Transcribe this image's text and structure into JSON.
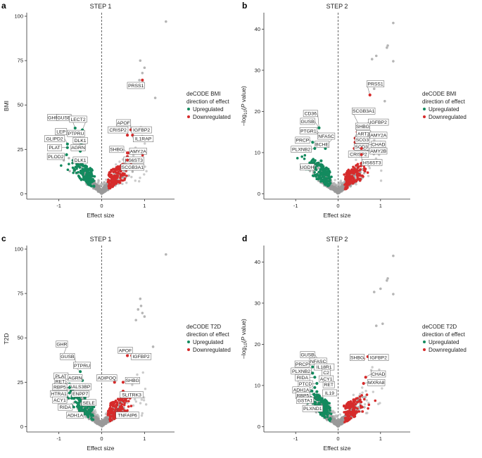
{
  "colors": {
    "up": "#138a5e",
    "down": "#d62b2b",
    "neutral": "#9a9a9a",
    "axis": "#333333"
  },
  "chart_data": [
    {
      "type": "scatter",
      "letter": "a",
      "title": "STEP 1",
      "xlabel": "Effect size",
      "ylabel": "BMI",
      "xlim": [
        -1.75,
        1.7
      ],
      "ylim": [
        -3,
        102
      ],
      "xticks": [
        -1,
        0,
        1
      ],
      "yticks": [
        0,
        25,
        50,
        75,
        100
      ],
      "ylabel_style": "plain",
      "legend": {
        "title": [
          "deCODE BMI",
          "direction of effect"
        ],
        "up": "Upregulated",
        "down": "Downregulated"
      },
      "extra_points": [
        [
          1.5,
          97
        ],
        [
          0.9,
          75
        ],
        [
          1.0,
          71
        ],
        [
          0.95,
          68
        ],
        [
          1.25,
          54
        ],
        [
          0.88,
          64
        ],
        [
          0.75,
          60
        ]
      ],
      "labels": [
        {
          "text": "GHR",
          "x": -1.05,
          "y": 44,
          "lx": -1.13,
          "ly": 43,
          "dir": "up"
        },
        {
          "text": "GUSB",
          "x": -0.62,
          "y": 37,
          "lx": -0.88,
          "ly": 43,
          "dir": "up"
        },
        {
          "text": "LECT2",
          "x": -0.45,
          "y": 36,
          "lx": -0.55,
          "ly": 42,
          "dir": "up"
        },
        {
          "text": "LEP",
          "x": -0.7,
          "y": 33,
          "lx": -0.95,
          "ly": 35,
          "dir": "up"
        },
        {
          "text": "PTPRU",
          "x": -0.55,
          "y": 31,
          "lx": -0.6,
          "ly": 34,
          "dir": "up"
        },
        {
          "text": "GLIPD2",
          "x": -0.8,
          "y": 28,
          "lx": -1.1,
          "ly": 31,
          "dir": "up"
        },
        {
          "text": "DLK1",
          "x": -0.48,
          "y": 28,
          "lx": -0.5,
          "ly": 30,
          "dir": "up"
        },
        {
          "text": "PLAT",
          "x": -0.8,
          "y": 26,
          "lx": -1.1,
          "ly": 26,
          "dir": "up"
        },
        {
          "text": "AGRN",
          "x": -0.5,
          "y": 24,
          "lx": -0.55,
          "ly": 26,
          "dir": "up"
        },
        {
          "text": "PLOD2",
          "x": -0.82,
          "y": 22,
          "lx": -1.07,
          "ly": 21,
          "dir": "up"
        },
        {
          "text": "DLK1",
          "x": -0.45,
          "y": 19,
          "lx": -0.5,
          "ly": 19,
          "dir": "up"
        },
        {
          "text": "PRSS1",
          "x": 0.95,
          "y": 64,
          "lx": 0.8,
          "ly": 61,
          "dir": "down"
        },
        {
          "text": "APOF",
          "x": 0.68,
          "y": 36,
          "lx": 0.51,
          "ly": 40,
          "dir": "down"
        },
        {
          "text": "IGFBP2",
          "x": 0.72,
          "y": 36,
          "lx": 0.93,
          "ly": 36,
          "dir": "down"
        },
        {
          "text": "CRISP2",
          "x": 0.6,
          "y": 33,
          "lx": 0.38,
          "ly": 36,
          "dir": "down"
        },
        {
          "text": "IL1RAP",
          "x": 0.72,
          "y": 33,
          "lx": 0.97,
          "ly": 31,
          "dir": "down"
        },
        {
          "text": "SHBG",
          "x": 0.6,
          "y": 23,
          "lx": 0.35,
          "ly": 25,
          "dir": "down"
        },
        {
          "text": "AMY2A",
          "x": 0.62,
          "y": 23,
          "lx": 0.85,
          "ly": 24,
          "dir": "down"
        },
        {
          "text": "HS6ST3",
          "x": 0.6,
          "y": 21,
          "lx": 0.75,
          "ly": 19,
          "dir": "down"
        },
        {
          "text": "SCGB3A1",
          "x": 0.6,
          "y": 19,
          "lx": 0.72,
          "ly": 15,
          "dir": "down"
        }
      ]
    },
    {
      "type": "scatter",
      "letter": "b",
      "title": "STEP 2",
      "xlabel": "Effect size",
      "ylabel": "value",
      "xlim": [
        -1.75,
        1.7
      ],
      "ylim": [
        -1.3,
        44
      ],
      "xticks": [
        -1,
        0,
        1
      ],
      "yticks": [
        0,
        10,
        20,
        30,
        40
      ],
      "ylabel_style": "log10",
      "legend": {
        "title": [
          "deCODE BMI",
          "direction of effect"
        ],
        "up": "Upregulated",
        "down": "Downregulated"
      },
      "extra_points": [
        [
          1.3,
          41.5
        ],
        [
          1.17,
          36
        ],
        [
          1.15,
          35.5
        ],
        [
          0.9,
          33.5
        ],
        [
          0.8,
          32.7
        ],
        [
          1.3,
          32.2
        ],
        [
          1.1,
          22.5
        ],
        [
          0.85,
          25.5
        ]
      ],
      "labels": [
        {
          "text": "CD36",
          "x": -0.45,
          "y": 16,
          "lx": -0.65,
          "ly": 19.5,
          "dir": "up"
        },
        {
          "text": "GUSB",
          "x": -0.45,
          "y": 16,
          "lx": -0.72,
          "ly": 17.6,
          "dir": "up"
        },
        {
          "text": "PTGR1",
          "x": -0.4,
          "y": 14,
          "lx": -0.7,
          "ly": 15.3,
          "dir": "up"
        },
        {
          "text": "NFASC",
          "x": -0.25,
          "y": 12,
          "lx": -0.28,
          "ly": 14,
          "dir": "up"
        },
        {
          "text": "PRCP",
          "x": -0.6,
          "y": 12.5,
          "lx": -0.84,
          "ly": 13,
          "dir": "up"
        },
        {
          "text": "BCHE",
          "x": -0.3,
          "y": 11,
          "lx": -0.38,
          "ly": 12,
          "dir": "up"
        },
        {
          "text": "PLXNB2",
          "x": -0.55,
          "y": 11,
          "lx": -0.87,
          "ly": 10.8,
          "dir": "up"
        },
        {
          "text": "UGDH",
          "x": -0.4,
          "y": 8,
          "lx": -0.73,
          "ly": 6.5,
          "dir": "up"
        },
        {
          "text": "PRSS1",
          "x": 0.75,
          "y": 24,
          "lx": 0.88,
          "ly": 26.7,
          "dir": "down"
        },
        {
          "text": "SCGB3A1",
          "x": 0.5,
          "y": 16.5,
          "lx": 0.6,
          "ly": 20.1,
          "dir": "down"
        },
        {
          "text": "IGFBP2",
          "x": 0.65,
          "y": 16.5,
          "lx": 0.95,
          "ly": 17.4,
          "dir": "down"
        },
        {
          "text": "SHBG",
          "x": 0.45,
          "y": 15,
          "lx": 0.58,
          "ly": 16.4,
          "dir": "down"
        },
        {
          "text": "ART3",
          "x": 0.4,
          "y": 13.5,
          "lx": 0.6,
          "ly": 14.6,
          "dir": "down"
        },
        {
          "text": "AMY2A",
          "x": 0.6,
          "y": 13.5,
          "lx": 0.95,
          "ly": 14.2,
          "dir": "down"
        },
        {
          "text": "SCG3",
          "x": 0.4,
          "y": 12.5,
          "lx": 0.57,
          "ly": 13.1,
          "dir": "down"
        },
        {
          "text": "CHAD",
          "x": 0.6,
          "y": 11.5,
          "lx": 0.95,
          "ly": 12,
          "dir": "down"
        },
        {
          "text": "SOD3",
          "x": 0.38,
          "y": 11,
          "lx": 0.55,
          "ly": 11.4,
          "dir": "down"
        },
        {
          "text": "AMY2B",
          "x": 0.55,
          "y": 11,
          "lx": 0.95,
          "ly": 10.4,
          "dir": "down"
        },
        {
          "text": "CRISP2",
          "x": 0.38,
          "y": 10,
          "lx": 0.48,
          "ly": 9.6,
          "dir": "down"
        },
        {
          "text": "HS6ST3",
          "x": 0.55,
          "y": 9.5,
          "lx": 0.8,
          "ly": 7.6,
          "dir": "down"
        }
      ]
    },
    {
      "type": "scatter",
      "letter": "c",
      "title": "STEP 1",
      "xlabel": "Effect size",
      "ylabel": "T2D",
      "xlim": [
        -1.75,
        1.7
      ],
      "ylim": [
        -3,
        102
      ],
      "xticks": [
        -1,
        0,
        1
      ],
      "yticks": [
        0,
        25,
        50,
        75,
        100
      ],
      "ylabel_style": "plain",
      "legend": {
        "title": [
          "deCODE T2D",
          "direction of effect"
        ],
        "up": "Upregulated",
        "down": "Downregulated"
      },
      "extra_points": [
        [
          1.5,
          97
        ],
        [
          0.9,
          72
        ],
        [
          0.92,
          68
        ],
        [
          0.85,
          66
        ],
        [
          0.95,
          64
        ],
        [
          1.0,
          62
        ],
        [
          0.8,
          60
        ],
        [
          1.2,
          45
        ]
      ],
      "labels": [
        {
          "text": "GHR",
          "x": -0.9,
          "y": 40,
          "lx": -0.93,
          "ly": 46.5,
          "dir": "up"
        },
        {
          "text": "GUSB",
          "x": -0.6,
          "y": 35,
          "lx": -0.8,
          "ly": 39.5,
          "dir": "up"
        },
        {
          "text": "PTPRU",
          "x": -0.5,
          "y": 31,
          "lx": -0.46,
          "ly": 34.5,
          "dir": "up"
        },
        {
          "text": "PLAT",
          "x": -0.75,
          "y": 27,
          "lx": -0.95,
          "ly": 28.5,
          "dir": "up"
        },
        {
          "text": "AGRN",
          "x": -0.45,
          "y": 26,
          "lx": -0.62,
          "ly": 27.5,
          "dir": "up"
        },
        {
          "text": "RET",
          "x": -0.75,
          "y": 24,
          "lx": -0.97,
          "ly": 25.5,
          "dir": "up"
        },
        {
          "text": "LGALS3BP",
          "x": -0.4,
          "y": 22,
          "lx": -0.55,
          "ly": 22.5,
          "dir": "up"
        },
        {
          "text": "RBP5",
          "x": -0.75,
          "y": 22,
          "lx": -0.98,
          "ly": 22.3,
          "dir": "up"
        },
        {
          "text": "ENPP7",
          "x": -0.35,
          "y": 19,
          "lx": -0.5,
          "ly": 18.5,
          "dir": "up"
        },
        {
          "text": "HTRA1",
          "x": -0.75,
          "y": 19,
          "lx": -1.0,
          "ly": 18.5,
          "dir": "up"
        },
        {
          "text": "ACY1",
          "x": -0.7,
          "y": 16,
          "lx": -0.98,
          "ly": 15,
          "dir": "up"
        },
        {
          "text": "SELE",
          "x": -0.35,
          "y": 14,
          "lx": -0.3,
          "ly": 13.5,
          "dir": "up"
        },
        {
          "text": "RIDA",
          "x": -0.7,
          "y": 12,
          "lx": -0.85,
          "ly": 11,
          "dir": "up"
        },
        {
          "text": "ADH1A",
          "x": -0.5,
          "y": 9,
          "lx": -0.62,
          "ly": 6.5,
          "dir": "up"
        },
        {
          "text": "APOF",
          "x": 0.6,
          "y": 40,
          "lx": 0.55,
          "ly": 43,
          "dir": "down"
        },
        {
          "text": "IGFBP2",
          "x": 0.7,
          "y": 40,
          "lx": 0.92,
          "ly": 39.5,
          "dir": "down"
        },
        {
          "text": "ADIPOQ",
          "x": 0.3,
          "y": 25,
          "lx": 0.12,
          "ly": 27.5,
          "dir": "down"
        },
        {
          "text": "SHBG",
          "x": 0.5,
          "y": 25,
          "lx": 0.72,
          "ly": 26,
          "dir": "down"
        },
        {
          "text": "SLITRK3",
          "x": 0.5,
          "y": 20,
          "lx": 0.7,
          "ly": 18,
          "dir": "down"
        },
        {
          "text": "TNFAIP6",
          "x": 0.45,
          "y": 15,
          "lx": 0.6,
          "ly": 6.5,
          "dir": "down"
        }
      ]
    },
    {
      "type": "scatter",
      "letter": "d",
      "title": "STEP 2",
      "xlabel": "Effect size",
      "ylabel": "value",
      "xlim": [
        -1.75,
        1.7
      ],
      "ylim": [
        -1.3,
        44
      ],
      "xticks": [
        -1,
        0,
        1
      ],
      "yticks": [
        0,
        10,
        20,
        30,
        40
      ],
      "ylabel_style": "log10",
      "legend": {
        "title": [
          "deCODE T2D",
          "direction of effect"
        ],
        "up": "Upregulated",
        "down": "Downregulated"
      },
      "extra_points": [
        [
          1.3,
          41.5
        ],
        [
          1.17,
          36
        ],
        [
          1.15,
          35.5
        ],
        [
          1.0,
          33.5
        ],
        [
          0.85,
          32.7
        ],
        [
          1.3,
          32.2
        ],
        [
          1.05,
          25
        ],
        [
          0.9,
          24.5
        ]
      ],
      "labels": [
        {
          "text": "GUSB",
          "x": -0.45,
          "y": 16,
          "lx": -0.72,
          "ly": 17.5,
          "dir": "up"
        },
        {
          "text": "NFASC",
          "x": -0.3,
          "y": 14.5,
          "lx": -0.47,
          "ly": 15.9,
          "dir": "up"
        },
        {
          "text": "PRCP",
          "x": -0.6,
          "y": 14.5,
          "lx": -0.85,
          "ly": 15.2,
          "dir": "up"
        },
        {
          "text": "IL18R1",
          "x": -0.3,
          "y": 13.5,
          "lx": -0.33,
          "ly": 14.5,
          "dir": "up"
        },
        {
          "text": "PLXNB2",
          "x": -0.6,
          "y": 13,
          "lx": -0.87,
          "ly": 13.5,
          "dir": "up"
        },
        {
          "text": "C2",
          "x": -0.3,
          "y": 12.5,
          "lx": -0.28,
          "ly": 13.1,
          "dir": "up"
        },
        {
          "text": "RIDA",
          "x": -0.55,
          "y": 12,
          "lx": -0.84,
          "ly": 11.9,
          "dir": "up"
        },
        {
          "text": "ACY1",
          "x": -0.3,
          "y": 11,
          "lx": -0.28,
          "ly": 11.6,
          "dir": "up"
        },
        {
          "text": "PTCD",
          "x": -0.5,
          "y": 10.5,
          "lx": -0.77,
          "ly": 10.4,
          "dir": "up"
        },
        {
          "text": "RET",
          "x": -0.3,
          "y": 9.8,
          "lx": -0.22,
          "ly": 10.2,
          "dir": "up"
        },
        {
          "text": "ADH1A",
          "x": -0.55,
          "y": 9.5,
          "lx": -0.87,
          "ly": 8.9,
          "dir": "up"
        },
        {
          "text": "IL19",
          "x": -0.3,
          "y": 8.5,
          "lx": -0.2,
          "ly": 8.2,
          "dir": "up"
        },
        {
          "text": "RBP5",
          "x": -0.5,
          "y": 8.5,
          "lx": -0.83,
          "ly": 7.6,
          "dir": "up"
        },
        {
          "text": "GSTA1",
          "x": -0.45,
          "y": 7.5,
          "lx": -0.78,
          "ly": 6.4,
          "dir": "up"
        },
        {
          "text": "PLXND1",
          "x": -0.4,
          "y": 6,
          "lx": -0.6,
          "ly": 4.4,
          "dir": "up"
        },
        {
          "text": "SHBG",
          "x": 0.6,
          "y": 16.5,
          "lx": 0.45,
          "ly": 16.8,
          "dir": "down"
        },
        {
          "text": "IGFBP2",
          "x": 0.7,
          "y": 17,
          "lx": 0.95,
          "ly": 16.8,
          "dir": "down"
        },
        {
          "text": "CHAD",
          "x": 0.65,
          "y": 12,
          "lx": 0.95,
          "ly": 12.8,
          "dir": "down"
        },
        {
          "text": "MXRA8",
          "x": 0.6,
          "y": 10.5,
          "lx": 0.9,
          "ly": 10.7,
          "dir": "down"
        }
      ]
    }
  ]
}
